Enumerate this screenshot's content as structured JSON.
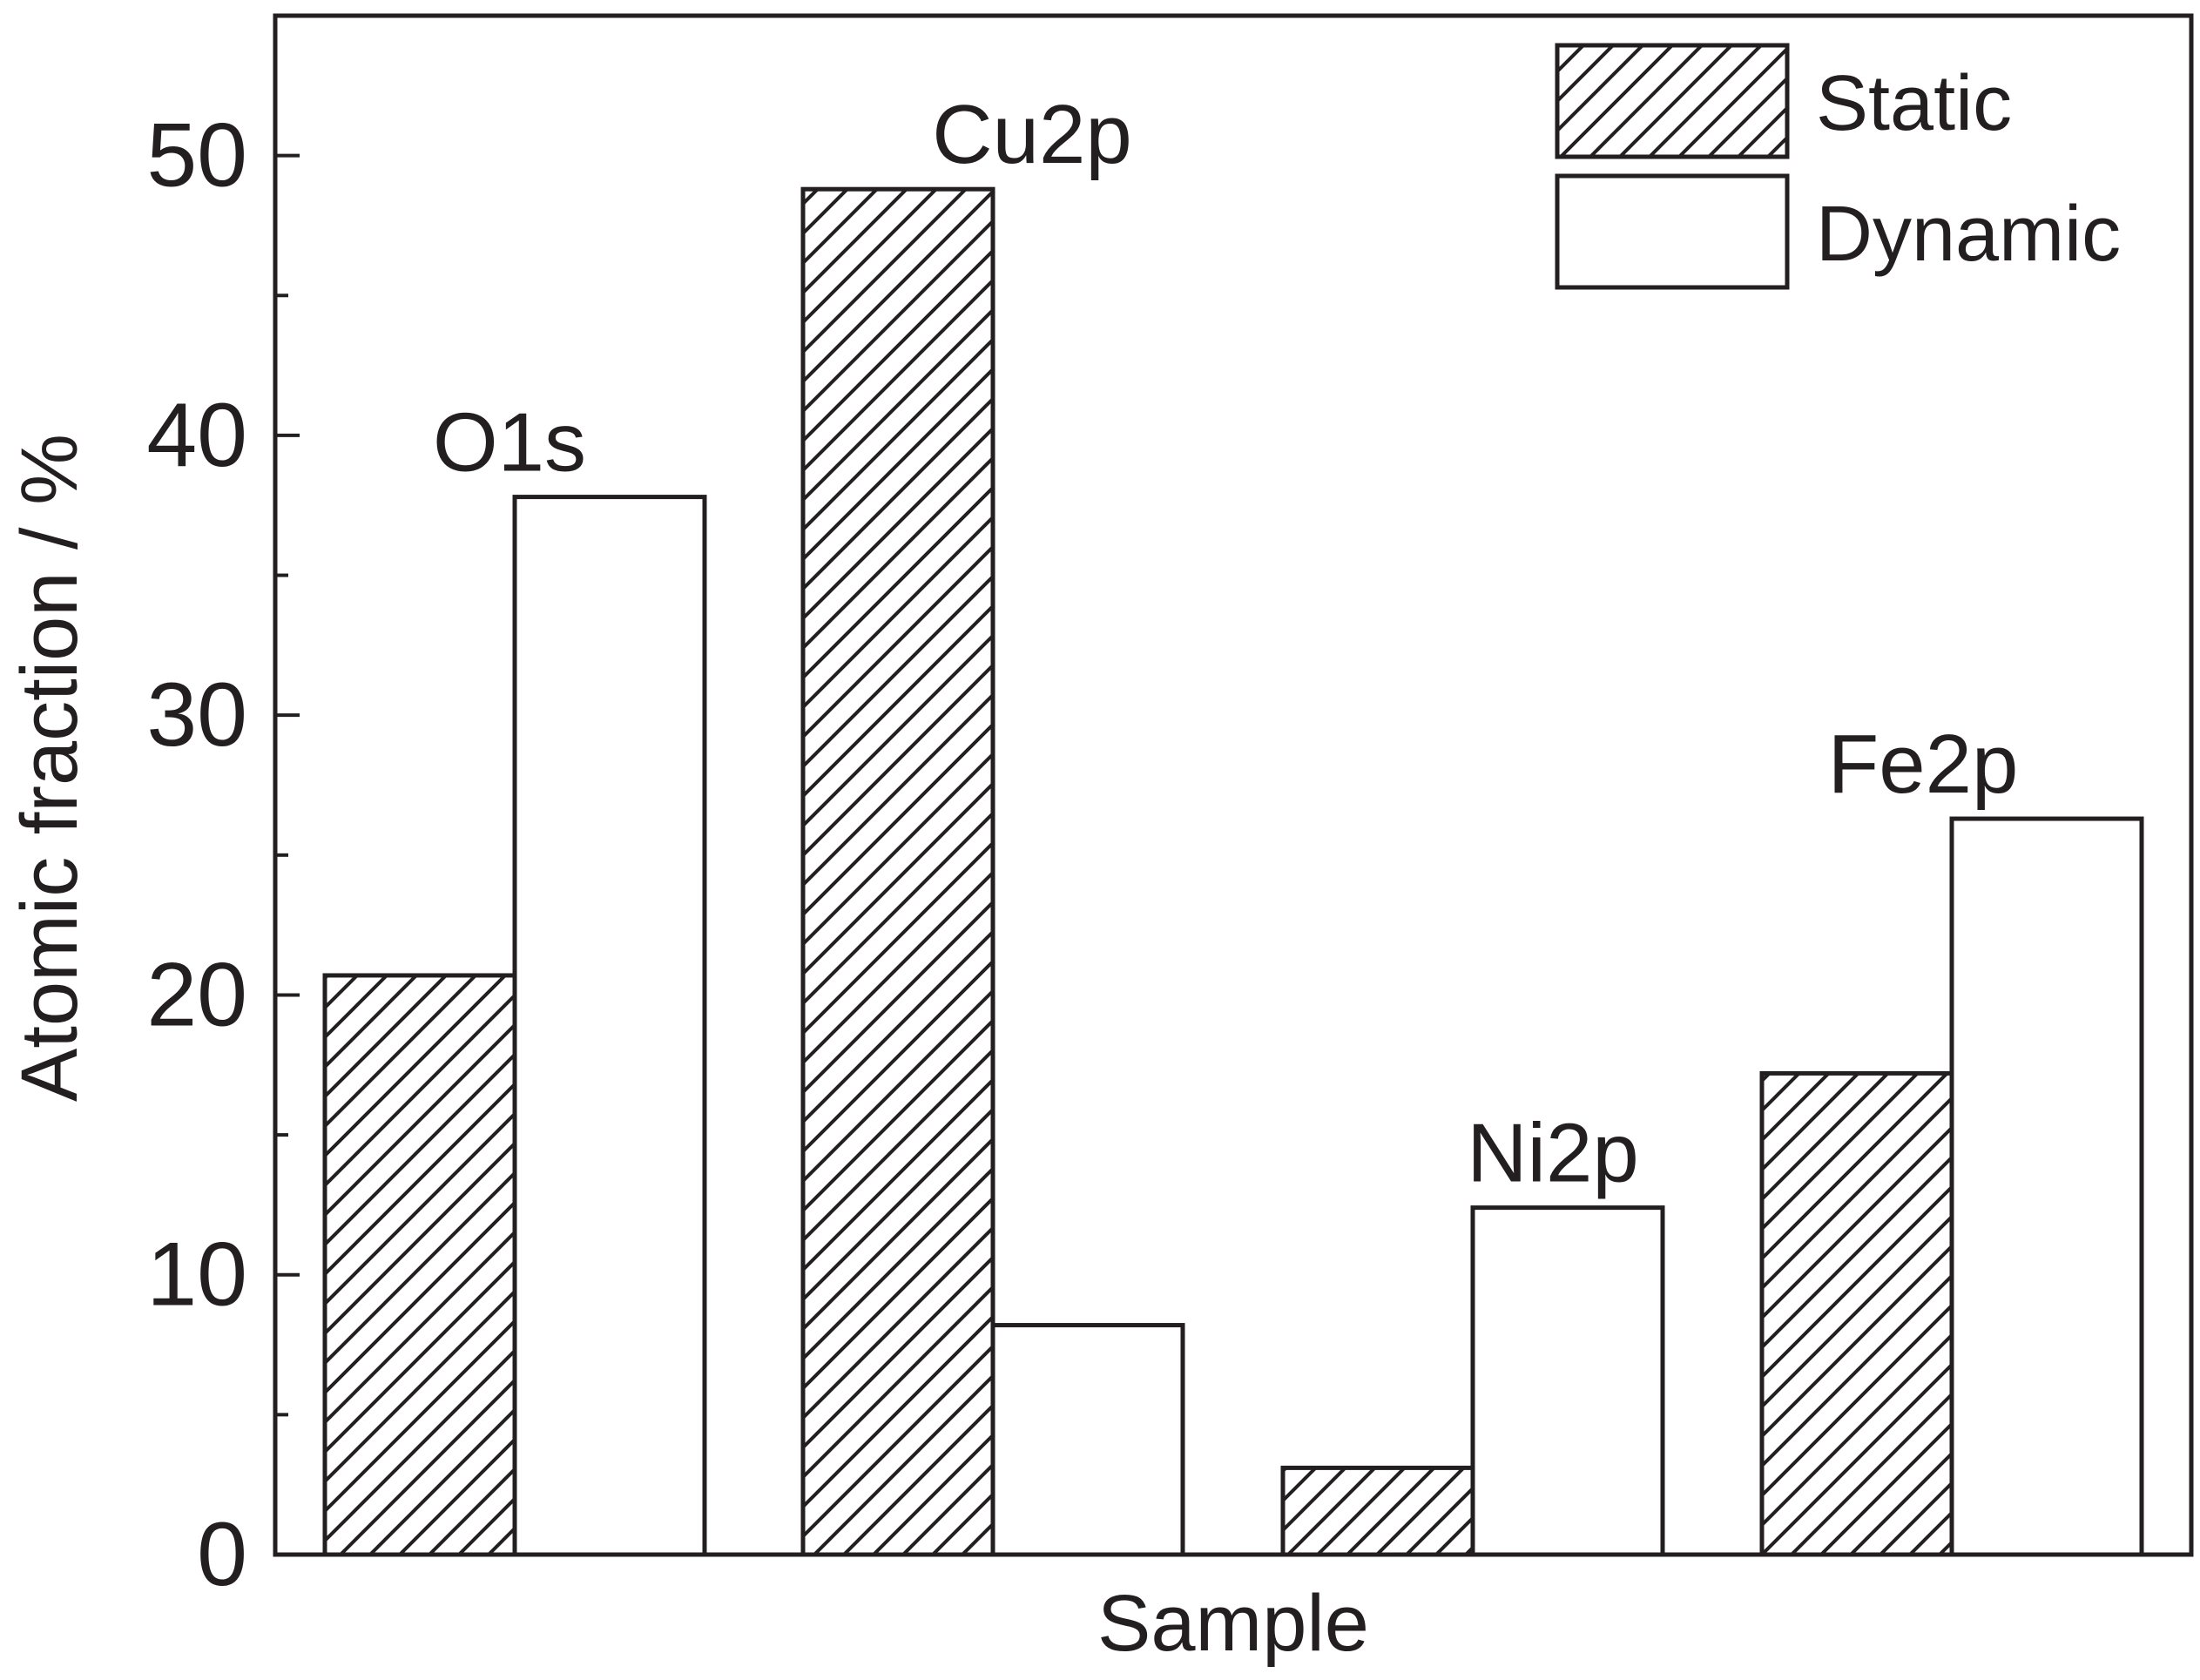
{
  "chart_data": {
    "type": "bar",
    "categories": [
      "O1s",
      "Cu2p",
      "Ni2p",
      "Fe2p"
    ],
    "series": [
      {
        "name": "Static",
        "values": [
          20.7,
          48.8,
          3.1,
          17.2
        ],
        "fill": "hatch"
      },
      {
        "name": "Dynamic",
        "values": [
          37.8,
          8.2,
          12.4,
          26.3
        ],
        "fill": "#ffffff"
      }
    ],
    "xlabel": "Sample",
    "ylabel": "Atomic fraction / %",
    "ylim": [
      0,
      55
    ],
    "yticks": [
      0,
      10,
      20,
      30,
      40,
      50
    ],
    "grid": false,
    "legend_position": "top-right",
    "colors": {
      "stroke": "#231f20",
      "background": "#ffffff"
    }
  }
}
